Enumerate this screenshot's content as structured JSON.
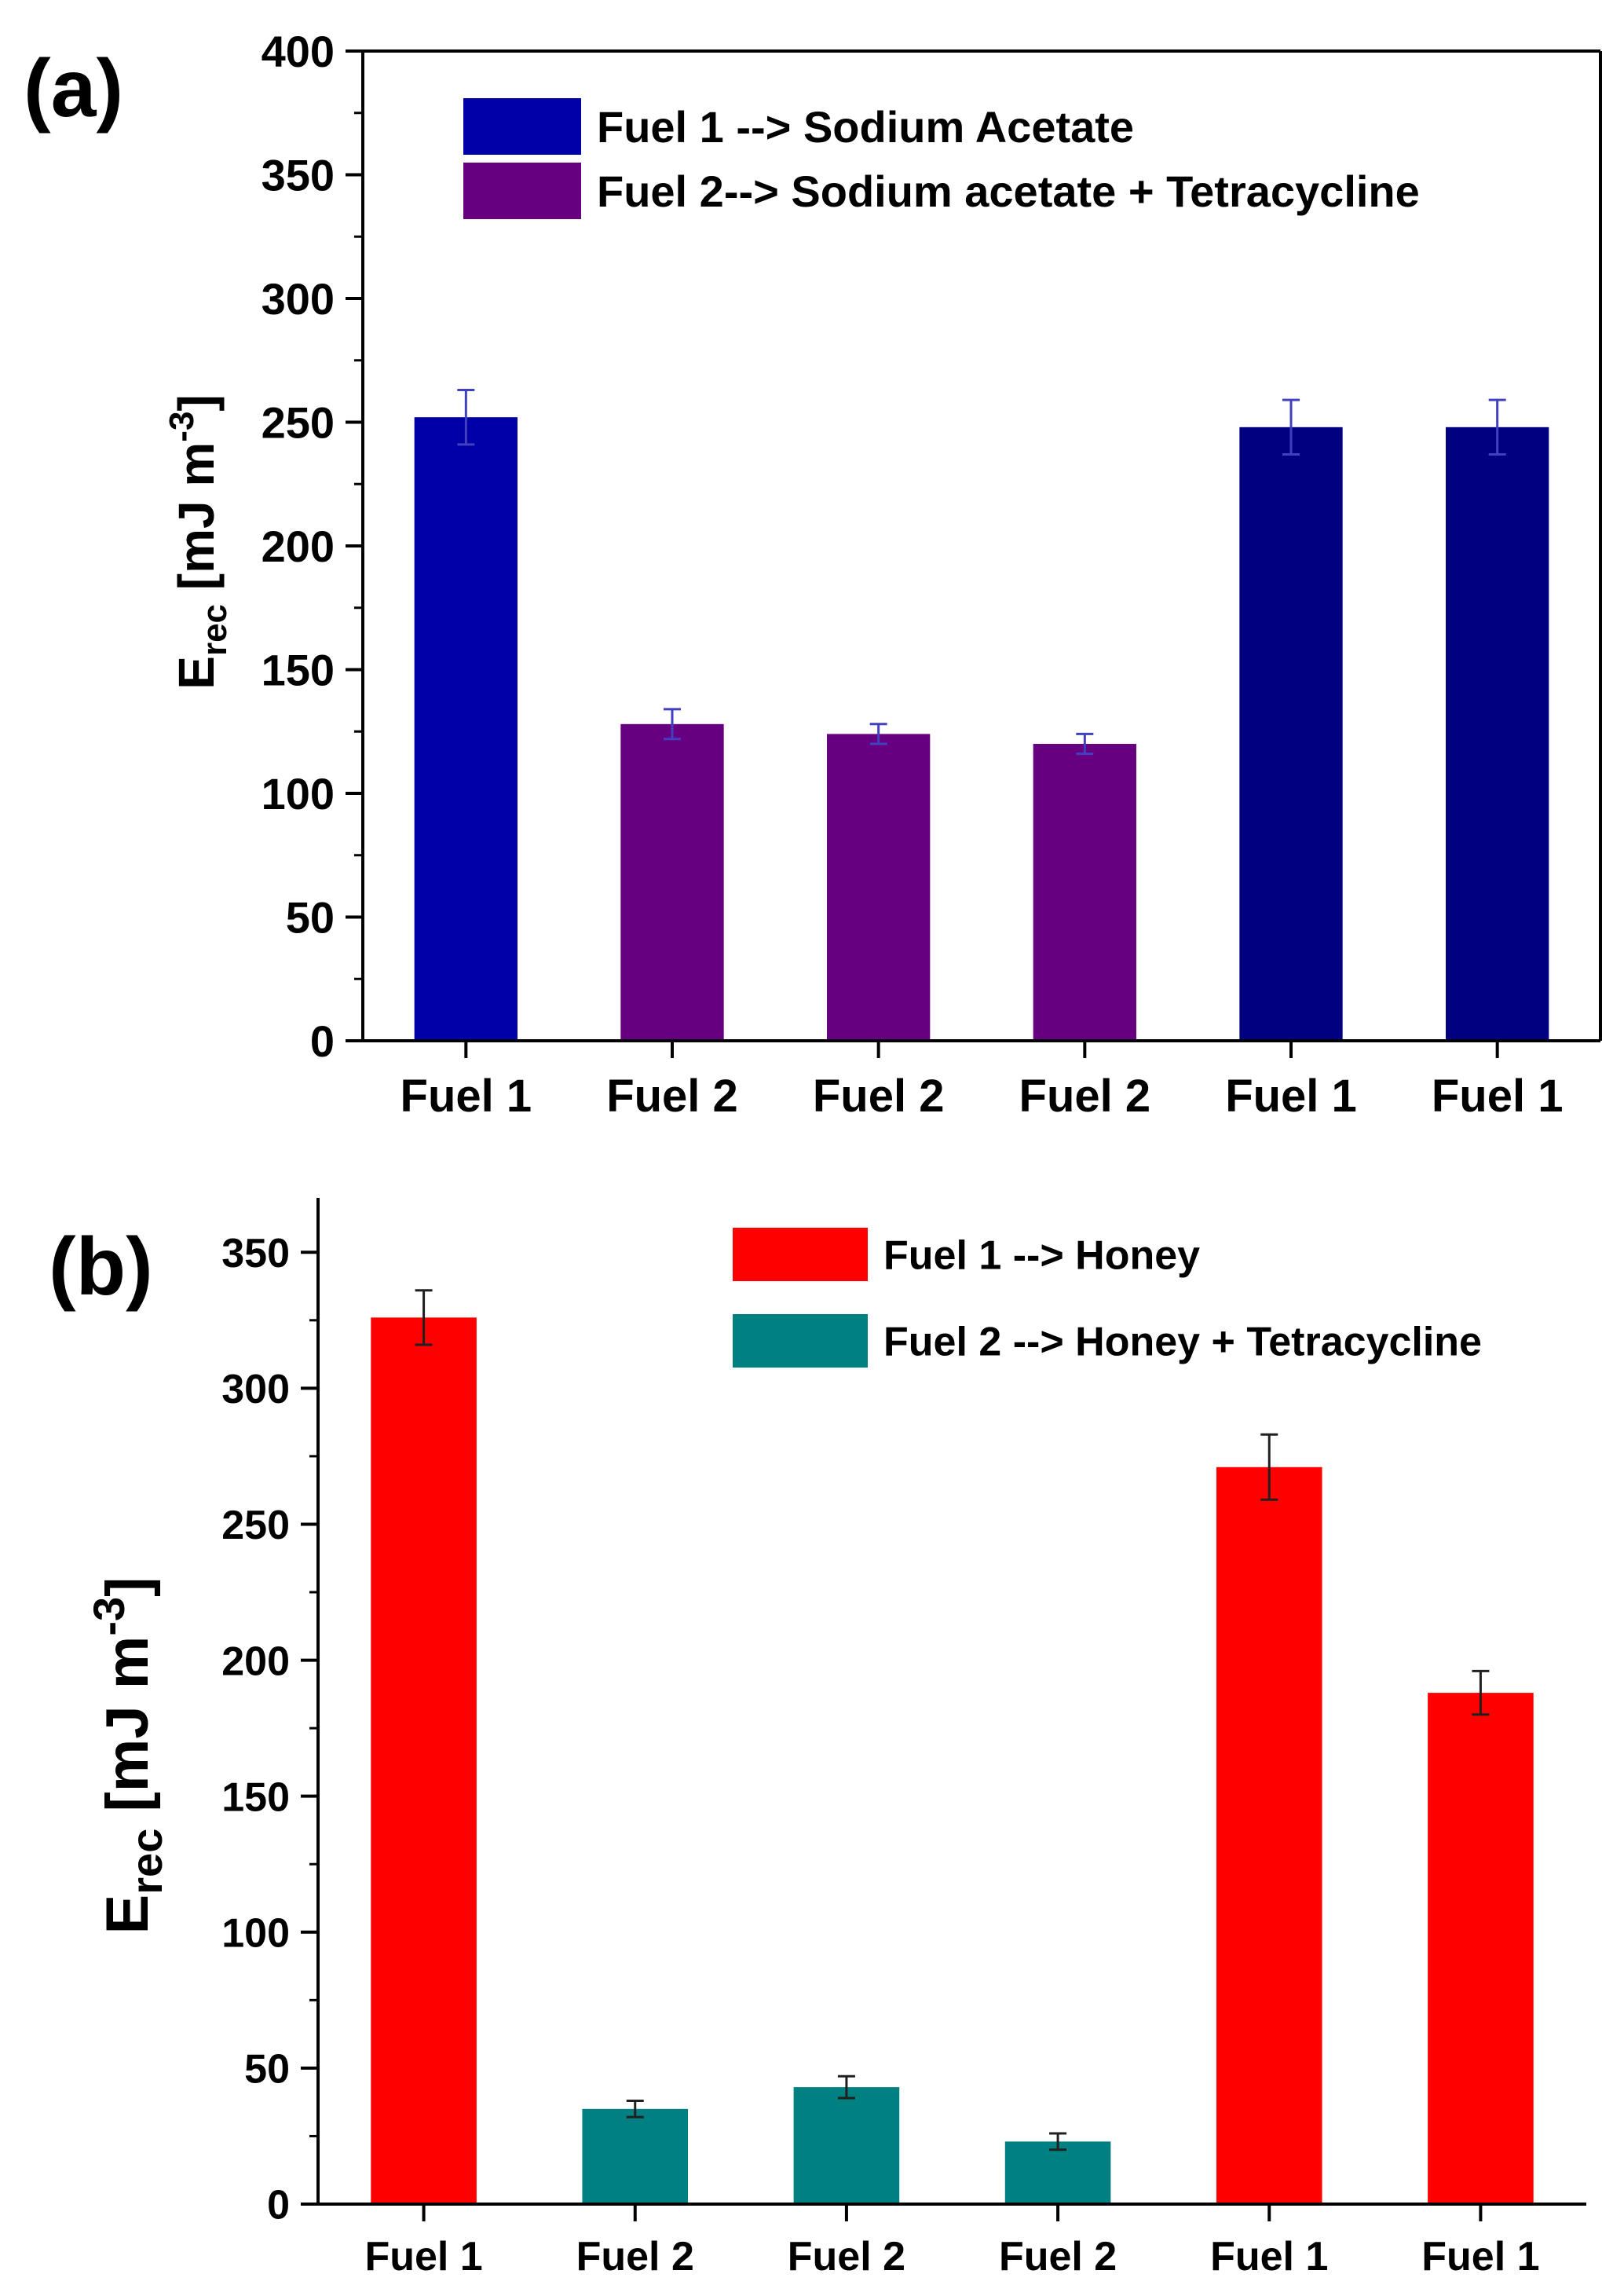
{
  "chart_data": [
    {
      "panel": "(a)",
      "type": "bar",
      "categories": [
        "Fuel 1",
        "Fuel 2",
        "Fuel 2",
        "Fuel 2",
        "Fuel 1",
        "Fuel 1"
      ],
      "values": [
        252,
        128,
        124,
        120,
        248,
        248
      ],
      "errors": [
        11,
        6,
        4,
        4,
        11,
        11
      ],
      "bar_colors": [
        "#0000a8",
        "#660080",
        "#660080",
        "#660080",
        "#000080",
        "#000080"
      ],
      "ylabel_main": "E",
      "ylabel_sub": "rec",
      "ylabel_unit": " [mJ m",
      "ylabel_sup": "-3",
      "ylabel_close": "]",
      "ylim": [
        0,
        400
      ],
      "yticks": [
        0,
        50,
        100,
        150,
        200,
        250,
        300,
        350,
        400
      ],
      "legend": [
        {
          "label": "Fuel 1 --> Sodium Acetate",
          "color": "#0000a8"
        },
        {
          "label": "Fuel 2--> Sodium acetate + Tetracycline",
          "color": "#660080"
        }
      ]
    },
    {
      "panel": "(b)",
      "type": "bar",
      "categories": [
        "Fuel 1",
        "Fuel 2",
        "Fuel 2",
        "Fuel 2",
        "Fuel 1",
        "Fuel 1"
      ],
      "values": [
        326,
        35,
        43,
        23,
        271,
        188
      ],
      "errors": [
        10,
        3,
        4,
        3,
        12,
        8
      ],
      "bar_colors": [
        "#ff0000",
        "#008080",
        "#008080",
        "#008080",
        "#ff0000",
        "#ff0000"
      ],
      "ylabel_main": "E",
      "ylabel_sub": "rec",
      "ylabel_unit": " [mJ m",
      "ylabel_sup": "-3",
      "ylabel_close": "]",
      "ylim": [
        0,
        370
      ],
      "yticks": [
        0,
        50,
        100,
        150,
        200,
        250,
        300,
        350
      ],
      "legend": [
        {
          "label": "Fuel 1 --> Honey",
          "color": "#ff0000"
        },
        {
          "label": "Fuel 2 --> Honey + Tetracycline",
          "color": "#008080"
        }
      ]
    }
  ]
}
